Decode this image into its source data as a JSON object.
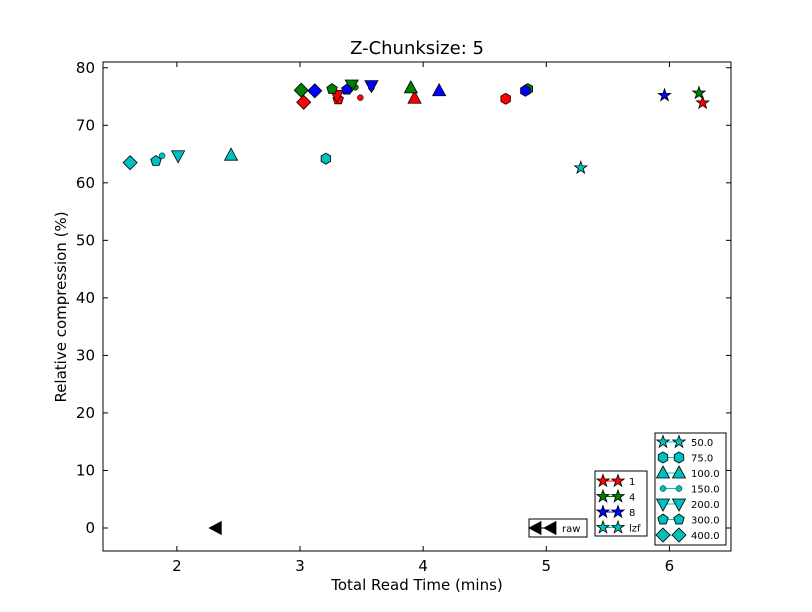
{
  "chart_data": {
    "type": "scatter",
    "title": "Z-Chunksize: 5",
    "xlabel": "Total Read Time (mins)",
    "ylabel": "Relative compression (%)",
    "xlim": [
      1.4,
      6.5
    ],
    "ylim": [
      -4,
      81
    ],
    "xticks": [
      2,
      3,
      4,
      5,
      6
    ],
    "yticks": [
      0,
      10,
      20,
      30,
      40,
      50,
      60,
      70,
      80
    ],
    "colors": {
      "1": "#ff0000",
      "4": "#007f00",
      "8": "#0000ff",
      "lzf": "#00bfbf",
      "raw": "#000000"
    },
    "points": [
      {
        "x": 2.32,
        "y": 0.0,
        "series": "raw",
        "marker": "triangle-left"
      },
      {
        "x": 1.62,
        "y": 63.5,
        "series": "lzf",
        "marker": "diamond"
      },
      {
        "x": 1.83,
        "y": 63.8,
        "series": "lzf",
        "marker": "pentagon"
      },
      {
        "x": 1.88,
        "y": 64.7,
        "series": "lzf",
        "marker": "circle"
      },
      {
        "x": 2.01,
        "y": 64.7,
        "series": "lzf",
        "marker": "triangle-down"
      },
      {
        "x": 2.44,
        "y": 64.8,
        "series": "lzf",
        "marker": "triangle-up"
      },
      {
        "x": 3.21,
        "y": 64.2,
        "series": "lzf",
        "marker": "hexagon"
      },
      {
        "x": 5.28,
        "y": 62.6,
        "series": "lzf",
        "marker": "star"
      },
      {
        "x": 3.03,
        "y": 74.0,
        "series": "1",
        "marker": "diamond"
      },
      {
        "x": 3.31,
        "y": 74.5,
        "series": "1",
        "marker": "pentagon"
      },
      {
        "x": 3.49,
        "y": 74.8,
        "series": "1",
        "marker": "circle"
      },
      {
        "x": 3.3,
        "y": 75.2,
        "series": "1",
        "marker": "triangle-down"
      },
      {
        "x": 3.93,
        "y": 74.7,
        "series": "1",
        "marker": "triangle-up"
      },
      {
        "x": 4.67,
        "y": 74.6,
        "series": "1",
        "marker": "hexagon"
      },
      {
        "x": 6.27,
        "y": 73.9,
        "series": "1",
        "marker": "star"
      },
      {
        "x": 3.01,
        "y": 76.1,
        "series": "4",
        "marker": "diamond"
      },
      {
        "x": 3.26,
        "y": 76.3,
        "series": "4",
        "marker": "pentagon"
      },
      {
        "x": 3.45,
        "y": 76.6,
        "series": "4",
        "marker": "circle"
      },
      {
        "x": 3.42,
        "y": 77.0,
        "series": "4",
        "marker": "triangle-down"
      },
      {
        "x": 3.9,
        "y": 76.5,
        "series": "4",
        "marker": "triangle-up"
      },
      {
        "x": 4.85,
        "y": 76.3,
        "series": "4",
        "marker": "hexagon"
      },
      {
        "x": 6.24,
        "y": 75.6,
        "series": "4",
        "marker": "star"
      },
      {
        "x": 3.12,
        "y": 76.0,
        "series": "8",
        "marker": "diamond"
      },
      {
        "x": 3.38,
        "y": 76.2,
        "series": "8",
        "marker": "pentagon"
      },
      {
        "x": 3.58,
        "y": 76.5,
        "series": "8",
        "marker": "circle"
      },
      {
        "x": 3.58,
        "y": 76.9,
        "series": "8",
        "marker": "triangle-down"
      },
      {
        "x": 4.13,
        "y": 76.0,
        "series": "8",
        "marker": "triangle-up"
      },
      {
        "x": 4.83,
        "y": 76.0,
        "series": "8",
        "marker": "hexagon"
      },
      {
        "x": 5.96,
        "y": 75.2,
        "series": "8",
        "marker": "star"
      }
    ],
    "legend_raw": {
      "label": "raw",
      "marker": "triangle-left",
      "placement": "bottom-center"
    },
    "legend_codec": {
      "placement": "bottom-right",
      "entries": [
        {
          "label": "1",
          "series": "1",
          "marker": "star"
        },
        {
          "label": "4",
          "series": "4",
          "marker": "star"
        },
        {
          "label": "8",
          "series": "8",
          "marker": "star"
        },
        {
          "label": "lzf",
          "series": "lzf",
          "marker": "star"
        }
      ]
    },
    "legend_chunk": {
      "placement": "bottom-right",
      "entries": [
        {
          "label": "50.0",
          "marker": "star"
        },
        {
          "label": "75.0",
          "marker": "hexagon"
        },
        {
          "label": "100.0",
          "marker": "triangle-up"
        },
        {
          "label": "150.0",
          "marker": "circle"
        },
        {
          "label": "200.0",
          "marker": "triangle-down"
        },
        {
          "label": "300.0",
          "marker": "pentagon"
        },
        {
          "label": "400.0",
          "marker": "diamond"
        }
      ]
    }
  }
}
